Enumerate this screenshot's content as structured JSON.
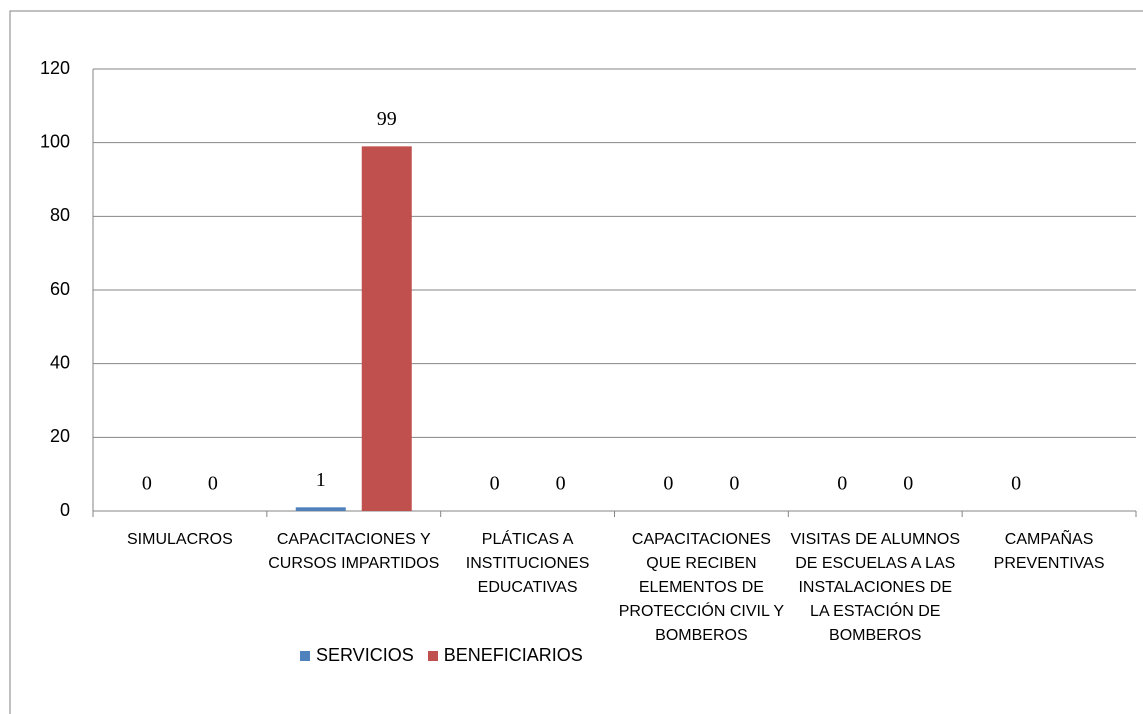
{
  "chart_data": {
    "type": "bar",
    "categories": [
      "SIMULACROS",
      "CAPACITACIONES Y CURSOS IMPARTIDOS",
      "PLÁTICAS A INSTITUCIONES EDUCATIVAS",
      "CAPACITACIONES QUE RECIBEN ELEMENTOS DE PROTECCIÓN CIVIL Y BOMBEROS",
      "VISITAS DE ALUMNOS DE ESCUELAS A LAS INSTALACIONES DE LA ESTACIÓN DE BOMBEROS",
      "CAMPAÑAS PREVENTIVAS"
    ],
    "series": [
      {
        "name": "SERVICIOS",
        "color": "#4f81bd",
        "values": [
          0,
          1,
          0,
          0,
          0,
          0
        ]
      },
      {
        "name": "BENEFICIARIOS",
        "color": "#c0504d",
        "values": [
          0,
          99,
          0,
          0,
          0,
          null
        ]
      }
    ],
    "ylim": [
      0,
      120
    ],
    "yticks": [
      0,
      20,
      40,
      60,
      80,
      100,
      120
    ],
    "grid": true,
    "legend": "bottom"
  }
}
